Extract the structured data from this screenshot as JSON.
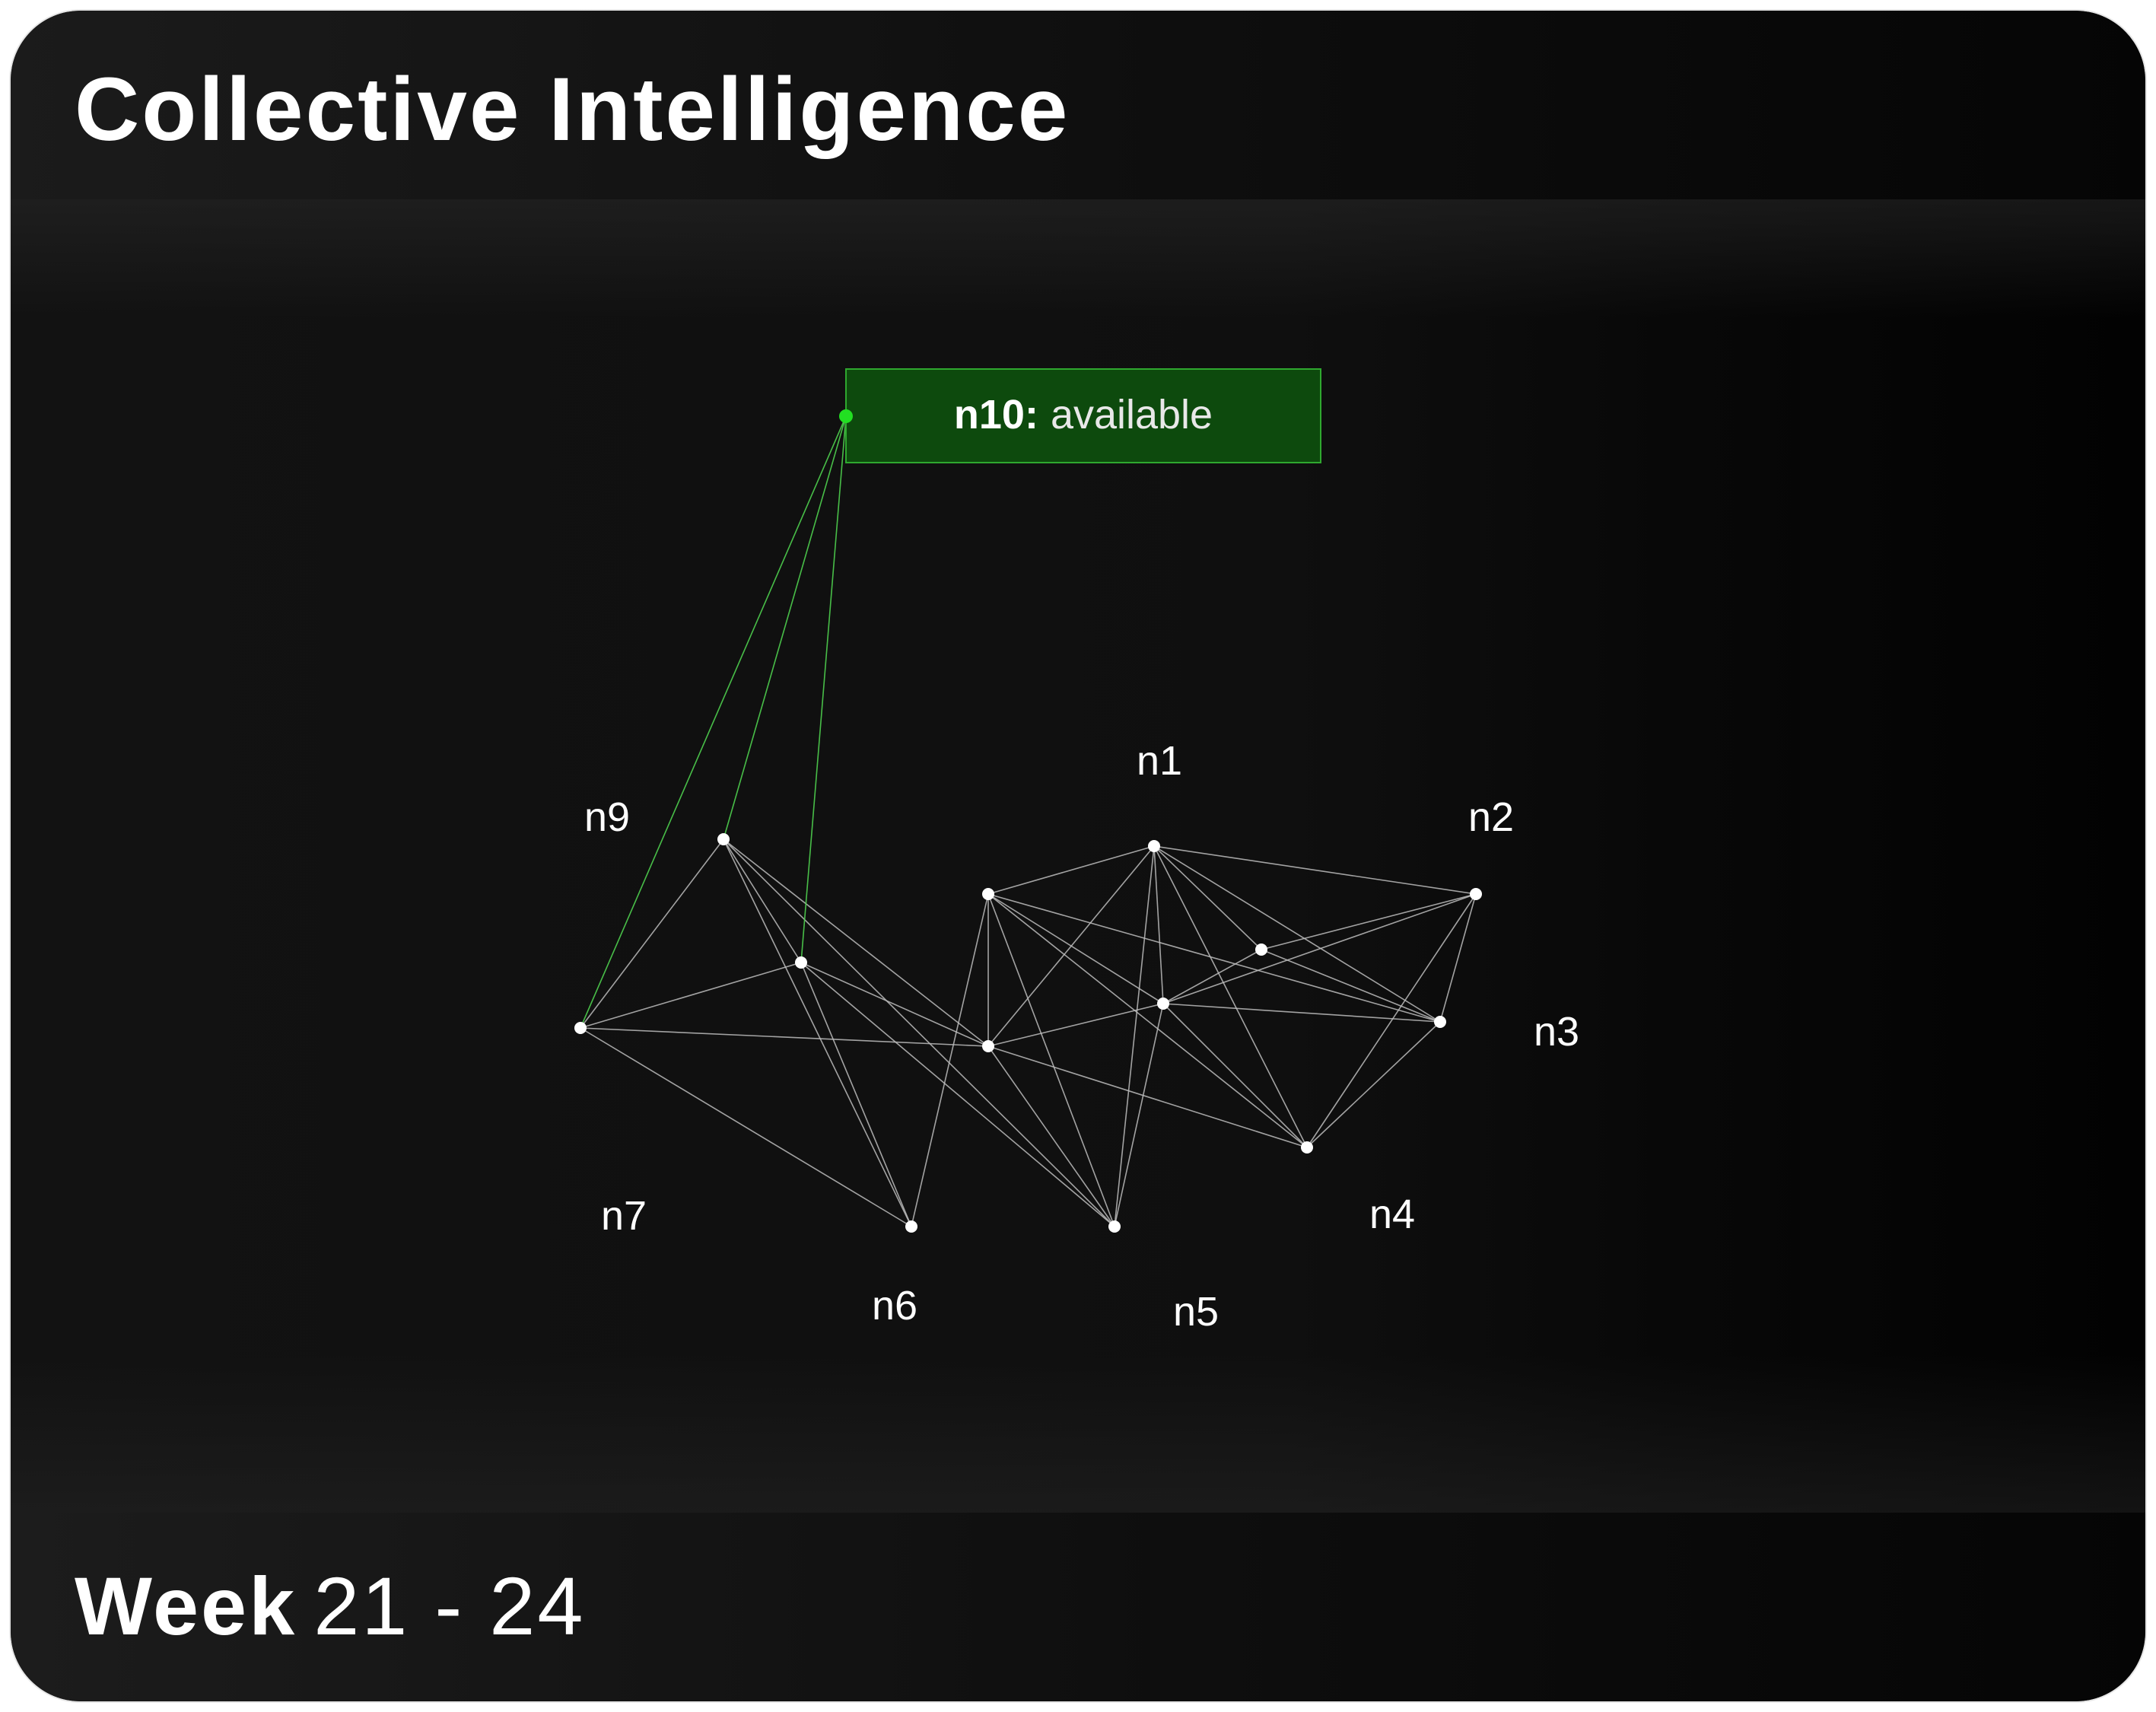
{
  "header": {
    "title": "Collective Intelligence"
  },
  "footer": {
    "week_label": "Week",
    "week_range": "21 - 24"
  },
  "tooltip": {
    "node": "n10:",
    "status": "available"
  },
  "colors": {
    "background": "#0b0b0b",
    "edge": "#bdbdbd",
    "edge_active": "#4fd14f",
    "node": "#ffffff",
    "node_active": "#22e022",
    "tooltip_fill": "#0d4a0d",
    "tooltip_border": "#2fa82f"
  },
  "diagram": {
    "labels": [
      "n1",
      "n2",
      "n3",
      "n4",
      "n5",
      "n6",
      "n7",
      "n9"
    ],
    "nodes": [
      {
        "id": "a"
      },
      {
        "id": "b"
      },
      {
        "id": "c"
      },
      {
        "id": "d"
      },
      {
        "id": "e"
      },
      {
        "id": "f"
      },
      {
        "id": "g"
      },
      {
        "id": "h"
      },
      {
        "id": "i"
      },
      {
        "id": "j"
      },
      {
        "id": "k"
      },
      {
        "id": "l"
      },
      {
        "id": "m"
      },
      {
        "id": "n10",
        "active": true
      }
    ],
    "edges": [
      [
        "a",
        "b"
      ],
      [
        "a",
        "c"
      ],
      [
        "a",
        "d"
      ],
      [
        "a",
        "e"
      ],
      [
        "a",
        "f"
      ],
      [
        "a",
        "g"
      ],
      [
        "a",
        "h"
      ],
      [
        "a",
        "i"
      ],
      [
        "b",
        "d"
      ],
      [
        "b",
        "e"
      ],
      [
        "b",
        "f"
      ],
      [
        "b",
        "g"
      ],
      [
        "c",
        "e"
      ],
      [
        "c",
        "f"
      ],
      [
        "c",
        "g"
      ],
      [
        "c",
        "h"
      ],
      [
        "c",
        "i"
      ],
      [
        "c",
        "m"
      ],
      [
        "d",
        "e"
      ],
      [
        "d",
        "f"
      ],
      [
        "e",
        "f"
      ],
      [
        "e",
        "g"
      ],
      [
        "e",
        "h"
      ],
      [
        "e",
        "i"
      ],
      [
        "f",
        "g"
      ],
      [
        "g",
        "h"
      ],
      [
        "h",
        "i"
      ],
      [
        "h",
        "j"
      ],
      [
        "h",
        "k"
      ],
      [
        "h",
        "l"
      ],
      [
        "i",
        "j"
      ],
      [
        "i",
        "k"
      ],
      [
        "j",
        "k"
      ],
      [
        "j",
        "l"
      ],
      [
        "j",
        "m"
      ],
      [
        "k",
        "l"
      ],
      [
        "k",
        "m"
      ],
      [
        "l",
        "m"
      ],
      [
        "n10",
        "k"
      ],
      [
        "n10",
        "l"
      ],
      [
        "n10",
        "j"
      ]
    ]
  }
}
